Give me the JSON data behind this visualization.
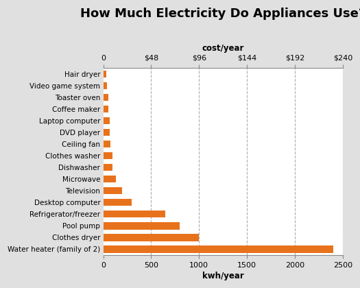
{
  "title": "How Much Electricity Do Appliances Use?",
  "categories": [
    "Hair dryer",
    "Video game system",
    "Toaster oven",
    "Coffee maker",
    "Laptop computer",
    "DVD player",
    "Ceiling fan",
    "Clothes washer",
    "Dishwasher",
    "Microwave",
    "Television",
    "Desktop computer",
    "Refrigerator/freezer",
    "Pool pump",
    "Clothes dryer",
    "Water heater (family of 2)"
  ],
  "kwh_values": [
    35,
    40,
    55,
    55,
    65,
    65,
    75,
    100,
    100,
    130,
    200,
    300,
    650,
    800,
    1000,
    2400
  ],
  "bar_color": "#E8721C",
  "background_color": "#E0E0E0",
  "plot_background": "#FFFFFF",
  "xlim_kwh": [
    0,
    2500
  ],
  "kwh_ticks": [
    0,
    500,
    1000,
    1500,
    2000,
    2500
  ],
  "cost_tick_positions": [
    0,
    500,
    1000,
    1500,
    2000,
    2500
  ],
  "cost_labels": [
    "0",
    "$48",
    "$96",
    "$144",
    "$192",
    "$240"
  ],
  "xlabel": "kwh/year",
  "top_axis_label": "cost/year",
  "title_fontsize": 13
}
